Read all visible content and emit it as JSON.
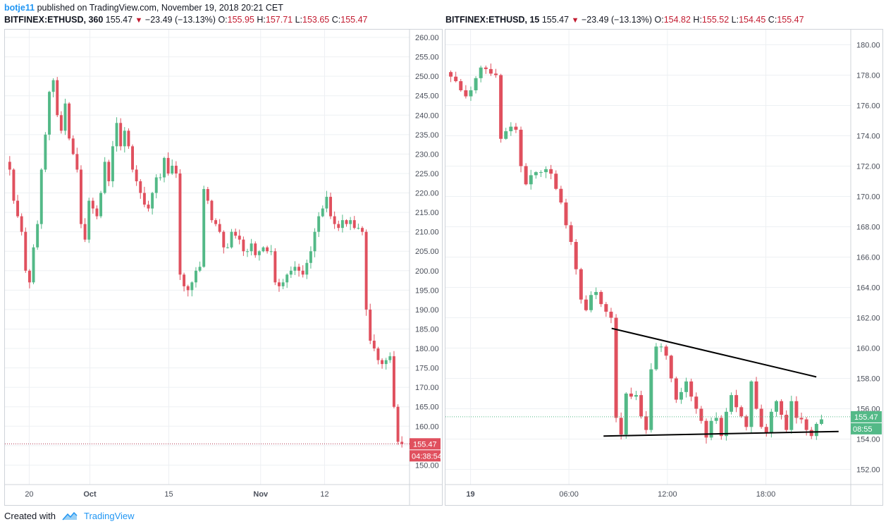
{
  "header": {
    "user": "botje11",
    "text": "published on TradingView.com, November 19, 2018 20:21 CET"
  },
  "footer": {
    "created_with": "Created with",
    "brand": "TradingView"
  },
  "colors": {
    "up": "#53b987",
    "down": "#e0505e",
    "grid": "#edf0f3",
    "axis_text": "#4a4f5a",
    "border": "#cfd3d9"
  },
  "left_legend": {
    "symbol": "BITFINEX:ETHUSD, 360",
    "last": "155.47",
    "change": "−23.49 (−13.13%)",
    "o_label": "O:",
    "o": "155.95",
    "h_label": "H:",
    "h": "157.71",
    "l_label": "L:",
    "l": "153.65",
    "c_label": "C:",
    "c": "155.47"
  },
  "right_legend": {
    "symbol": "BITFINEX:ETHUSD, 15",
    "last": "155.47",
    "change": "−23.49 (−13.13%)",
    "o_label": "O:",
    "o": "154.82",
    "h_label": "H:",
    "h": "155.52",
    "l_label": "L:",
    "l": "154.45",
    "c_label": "C:",
    "c": "155.47"
  },
  "chart_data": [
    {
      "type": "candlestick",
      "title": "BITFINEX:ETHUSD, 360",
      "ylim": [
        145,
        262
      ],
      "y_ticks": [
        150,
        155,
        160,
        165,
        170,
        175,
        180,
        185,
        190,
        195,
        200,
        205,
        210,
        215,
        220,
        225,
        230,
        235,
        240,
        245,
        250,
        255,
        260
      ],
      "y_tick_labels": [
        "150.00",
        "155.00",
        "160.00",
        "165.00",
        "170.00",
        "175.00",
        "180.00",
        "185.00",
        "190.00",
        "195.00",
        "200.00",
        "205.00",
        "210.00",
        "215.00",
        "220.00",
        "225.00",
        "230.00",
        "235.00",
        "240.00",
        "245.00",
        "250.00",
        "255.00",
        "260.00"
      ],
      "x_ticks": [
        {
          "label": "20",
          "pos": 0.06,
          "bold": false
        },
        {
          "label": "Oct",
          "pos": 0.21,
          "bold": true
        },
        {
          "label": "15",
          "pos": 0.405,
          "bold": false
        },
        {
          "label": "Nov",
          "pos": 0.632,
          "bold": true
        },
        {
          "label": "12",
          "pos": 0.79,
          "bold": false
        }
      ],
      "series_close": [
        226,
        218,
        214,
        210,
        200,
        197,
        206,
        212,
        226,
        235,
        246,
        249,
        240,
        236,
        243,
        234,
        230,
        226,
        212,
        208,
        218,
        216,
        214,
        220,
        228,
        223,
        232,
        238,
        232,
        236,
        232,
        226,
        223,
        220,
        217,
        216,
        220,
        224,
        224,
        229,
        225,
        227,
        225,
        199,
        196,
        195,
        197,
        200,
        201,
        221,
        218,
        213,
        212,
        210,
        206,
        206,
        210,
        209,
        208,
        205,
        205,
        207,
        204,
        205,
        206,
        205,
        205,
        197,
        196,
        197,
        199,
        200,
        201,
        200,
        199,
        202,
        205,
        210,
        214,
        216,
        219,
        214,
        212,
        211,
        213,
        212,
        213,
        211,
        211,
        210,
        190,
        182,
        180,
        177,
        176,
        177,
        178,
        165,
        156,
        155.47
      ],
      "last_price": 155.47,
      "last_price_label": "155.47",
      "countdown": "04:38:54"
    },
    {
      "type": "candlestick",
      "title": "BITFINEX:ETHUSD, 15",
      "ylim": [
        151,
        181
      ],
      "y_ticks": [
        152,
        154,
        156,
        158,
        160,
        162,
        164,
        166,
        168,
        170,
        172,
        174,
        176,
        178,
        180
      ],
      "y_tick_labels": [
        "152.00",
        "154.00",
        "156.00",
        "158.00",
        "160.00",
        "162.00",
        "164.00",
        "166.00",
        "168.00",
        "170.00",
        "172.00",
        "174.00",
        "176.00",
        "178.00",
        "180.00"
      ],
      "x_ticks": [
        {
          "label": "19",
          "pos": 0.0618,
          "bold": true
        },
        {
          "label": "06:00",
          "pos": 0.3046,
          "bold": false
        },
        {
          "label": "12:00",
          "pos": 0.5476,
          "bold": false
        },
        {
          "label": "18:00",
          "pos": 0.7905,
          "bold": false
        }
      ],
      "series_close": [
        177.9,
        177.6,
        177.0,
        176.6,
        177.0,
        177.8,
        178.5,
        178.4,
        178.1,
        178.0,
        173.8,
        174.3,
        174.6,
        174.4,
        172.0,
        170.8,
        171.4,
        171.6,
        171.6,
        171.8,
        171.5,
        170.5,
        169.6,
        168.1,
        167.0,
        165.2,
        163.2,
        162.5,
        163.5,
        163.7,
        162.9,
        162.4,
        162.0,
        155.4,
        154.3,
        157.0,
        156.8,
        156.9,
        155.5,
        154.6,
        158.6,
        160.1,
        160.1,
        159.5,
        158.0,
        156.6,
        157.1,
        157.8,
        156.8,
        156.0,
        155.2,
        154.1,
        155.2,
        155.4,
        154.2,
        155.8,
        156.9,
        156.1,
        155.5,
        154.8,
        157.8,
        156.0,
        154.8,
        154.4,
        155.8,
        156.5,
        155.6,
        154.6,
        156.5,
        155.4,
        155.3,
        154.6,
        154.2,
        155.0,
        155.3
      ],
      "last_price": 155.47,
      "last_price_label": "155.47",
      "countdown": "08:55",
      "trendlines": [
        {
          "name": "upper",
          "from": [
            0.41,
            161.3
          ],
          "to": [
            0.915,
            158.1
          ]
        },
        {
          "name": "lower",
          "from": [
            0.39,
            154.2
          ],
          "to": [
            0.97,
            154.5
          ]
        }
      ]
    }
  ]
}
